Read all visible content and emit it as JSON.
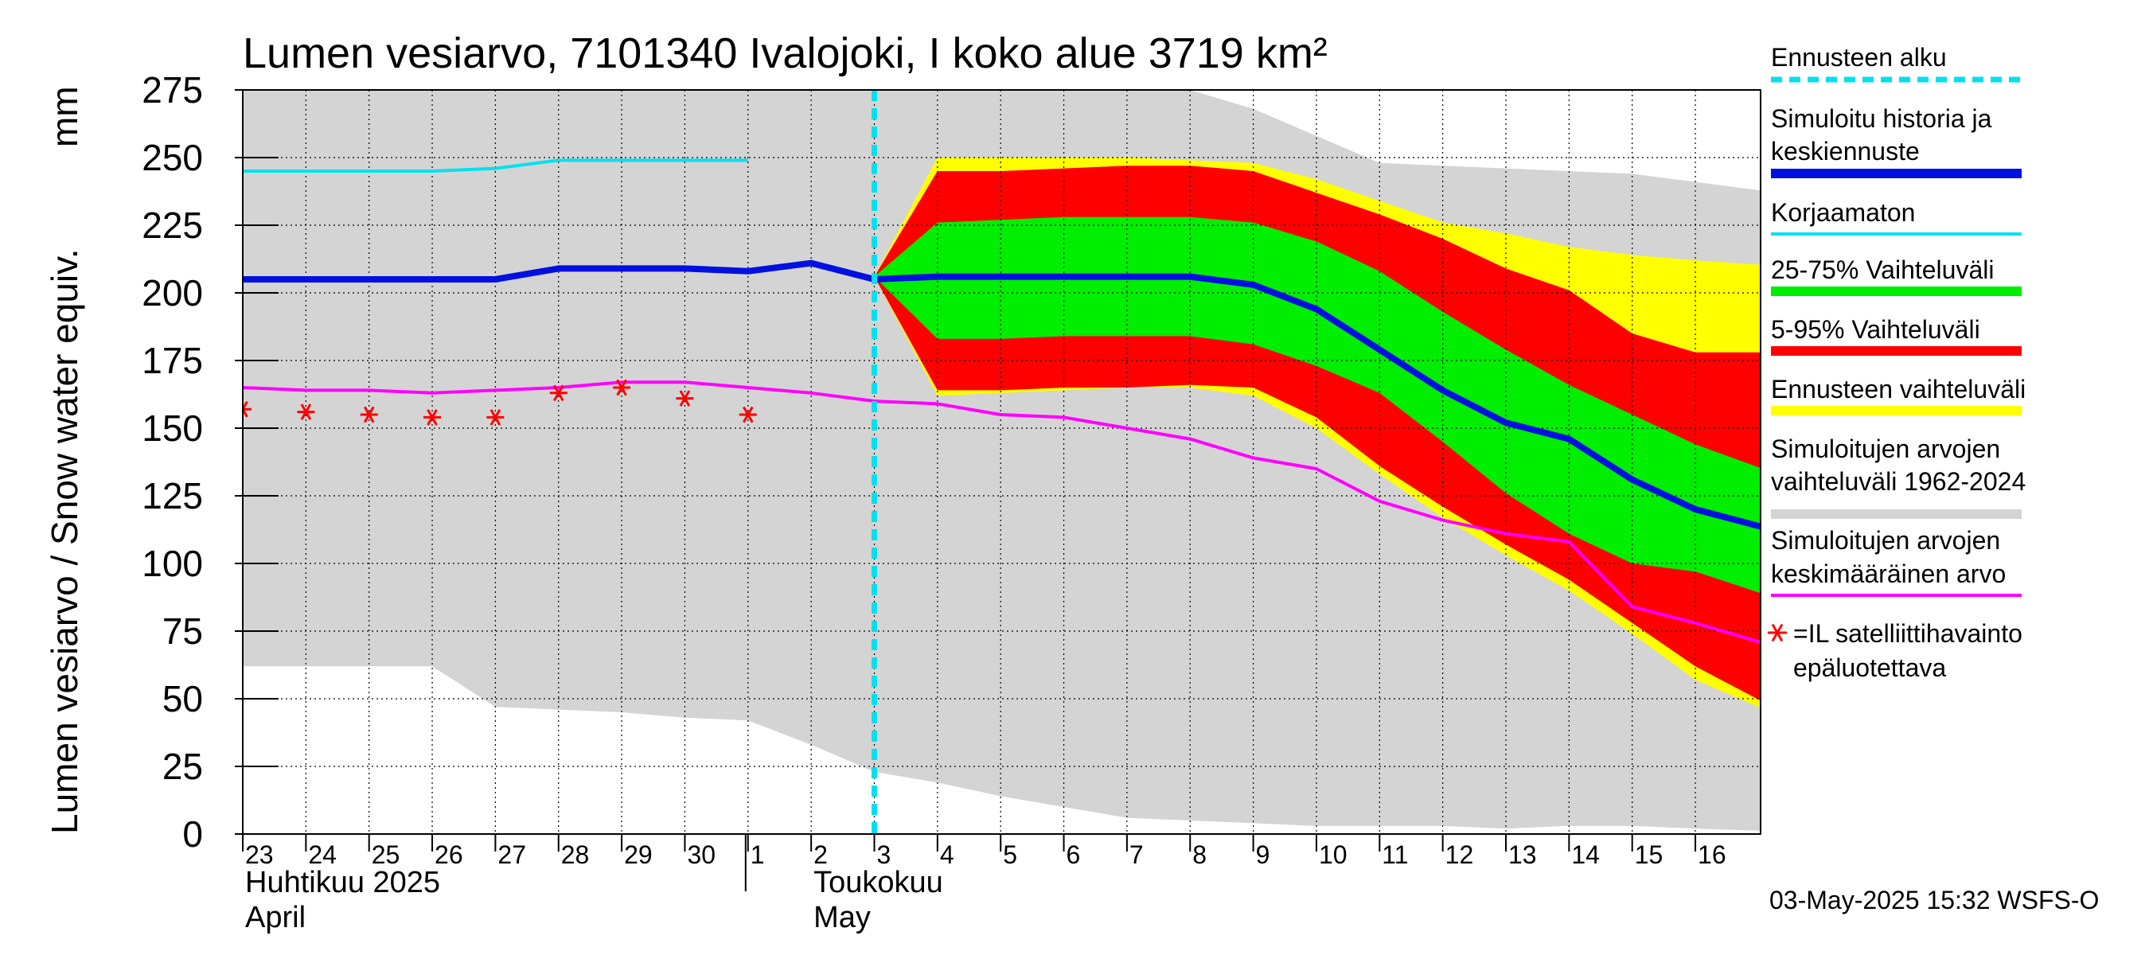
{
  "chart_data": {
    "type": "area",
    "title": "Lumen vesiarvo, 7101340 Ivalojoki, I koko alue 3719 km²",
    "ylabel": "Lumen vesiarvo / Snow water equiv.",
    "yunit": "mm",
    "ylim": [
      0,
      275
    ],
    "yticks": [
      0,
      25,
      50,
      75,
      100,
      125,
      150,
      175,
      200,
      225,
      250,
      275
    ],
    "xlim": [
      0,
      24.3
    ],
    "x_labels": [
      {
        "x": 0,
        "label": "23"
      },
      {
        "x": 1,
        "label": "24"
      },
      {
        "x": 2,
        "label": "25"
      },
      {
        "x": 3,
        "label": "26"
      },
      {
        "x": 4,
        "label": "27"
      },
      {
        "x": 5,
        "label": "28"
      },
      {
        "x": 6,
        "label": "29"
      },
      {
        "x": 7,
        "label": "30"
      },
      {
        "x": 8,
        "label": "1"
      },
      {
        "x": 9,
        "label": "2"
      },
      {
        "x": 10,
        "label": "3"
      },
      {
        "x": 11,
        "label": "4"
      },
      {
        "x": 12,
        "label": "5"
      },
      {
        "x": 13,
        "label": "6"
      },
      {
        "x": 14,
        "label": "7"
      },
      {
        "x": 15,
        "label": "8"
      },
      {
        "x": 16,
        "label": "9"
      },
      {
        "x": 17,
        "label": "10"
      },
      {
        "x": 18,
        "label": "11"
      },
      {
        "x": 19,
        "label": "12"
      },
      {
        "x": 20,
        "label": "13"
      },
      {
        "x": 21,
        "label": "14"
      },
      {
        "x": 22,
        "label": "15"
      },
      {
        "x": 23,
        "label": "16"
      }
    ],
    "month_labels": [
      {
        "x": 0,
        "line1": "Huhtikuu  2025",
        "line2": "April"
      },
      {
        "x": 9,
        "line1": "Toukokuu",
        "line2": "May"
      }
    ],
    "month_divider_x": 8,
    "forecast_start_x": 10,
    "grid": true,
    "legend_position": "right",
    "series": [
      {
        "name": "Simuloitujen arvojen vaihteluväli 1962-2024",
        "kind": "band",
        "color": "#d4d4d4",
        "x": [
          0,
          2,
          3,
          4,
          6,
          7,
          8,
          9,
          10,
          11,
          12,
          13,
          14,
          15,
          16,
          17,
          18,
          19,
          20,
          21,
          22,
          23,
          24.3
        ],
        "upper": [
          275,
          275,
          275,
          275,
          275,
          275,
          275,
          275,
          275,
          275,
          275,
          275,
          275,
          275,
          268,
          258,
          248,
          247,
          246,
          245,
          244,
          241,
          237
        ],
        "lower": [
          62,
          62,
          62,
          47,
          45,
          43,
          42,
          33,
          23,
          19,
          14,
          10,
          6,
          5,
          4,
          3,
          3,
          3,
          2,
          3,
          3,
          2,
          1
        ]
      },
      {
        "name": "Ennusteen vaihteluväli",
        "kind": "band",
        "color": "#ffff00",
        "x": [
          10,
          11,
          12,
          13,
          14,
          15,
          16,
          17,
          18,
          19,
          20,
          21,
          22,
          23,
          24.3
        ],
        "upper": [
          206,
          250,
          250,
          250,
          250,
          249,
          248,
          242,
          234,
          226,
          222,
          217,
          214,
          212,
          210
        ],
        "lower": [
          206,
          162,
          163,
          164,
          165,
          165,
          162,
          150,
          133,
          117,
          103,
          90,
          74,
          57,
          44
        ]
      },
      {
        "name": "5-95% Vaihteluväli",
        "kind": "band",
        "color": "#ff0000",
        "x": [
          10,
          11,
          12,
          13,
          14,
          15,
          16,
          17,
          18,
          19,
          20,
          21,
          22,
          23,
          24.3
        ],
        "upper": [
          206,
          245,
          245,
          246,
          247,
          247,
          245,
          237,
          229,
          220,
          209,
          201,
          185,
          178,
          178
        ],
        "lower": [
          206,
          164,
          164,
          165,
          165,
          166,
          165,
          154,
          136,
          121,
          107,
          94,
          78,
          62,
          46
        ]
      },
      {
        "name": "25-75% Vaihteluväli",
        "kind": "band",
        "color": "#00ee00",
        "x": [
          10,
          11,
          12,
          13,
          14,
          15,
          16,
          17,
          18,
          19,
          20,
          21,
          22,
          23,
          24.3
        ],
        "upper": [
          206,
          226,
          227,
          228,
          228,
          228,
          226,
          219,
          208,
          193,
          179,
          166,
          155,
          144,
          133
        ],
        "lower": [
          206,
          183,
          183,
          184,
          184,
          184,
          181,
          173,
          163,
          145,
          126,
          111,
          100,
          97,
          87
        ]
      },
      {
        "name": "Korjaamaton",
        "kind": "line",
        "color": "#00e0f0",
        "x": [
          0,
          1,
          2,
          3,
          4,
          5,
          6,
          7,
          8
        ],
        "y": [
          245,
          245,
          245,
          245,
          246,
          249,
          249,
          249,
          249
        ]
      },
      {
        "name": "Simuloitu historia ja keskiennuste",
        "kind": "line",
        "color": "#0010e0",
        "x": [
          0,
          1,
          2,
          3,
          4,
          5,
          6,
          7,
          8,
          9,
          10,
          11,
          12,
          13,
          14,
          15,
          16,
          17,
          18,
          19,
          20,
          21,
          22,
          23,
          24.3
        ],
        "y": [
          205,
          205,
          205,
          205,
          205,
          209,
          209,
          209,
          208,
          211,
          205,
          206,
          206,
          206,
          206,
          206,
          203,
          194,
          179,
          164,
          152,
          146,
          131,
          120,
          112
        ]
      },
      {
        "name": "Simuloitujen arvojen keskimääräinen arvo",
        "kind": "line",
        "color": "#ff00ff",
        "x": [
          0,
          1,
          2,
          3,
          4,
          5,
          6,
          7,
          8,
          9,
          10,
          11,
          12,
          13,
          14,
          15,
          16,
          17,
          18,
          19,
          20,
          21,
          22,
          23,
          24.3
        ],
        "y": [
          165,
          164,
          164,
          163,
          164,
          165,
          167,
          167,
          165,
          163,
          160,
          159,
          155,
          154,
          150,
          146,
          139,
          135,
          123,
          116,
          111,
          108,
          84,
          78,
          69
        ]
      },
      {
        "name": "=IL satelliittihavainto epäluotettava",
        "kind": "markers",
        "color": "#ff0000",
        "x": [
          0,
          1,
          2,
          3,
          4,
          5,
          6,
          7,
          8
        ],
        "y": [
          157,
          156,
          155,
          154,
          154,
          163,
          165,
          161,
          155
        ]
      }
    ],
    "legend": [
      {
        "label": "Ennusteen alku",
        "color": "#00e0f0",
        "style": "dashed"
      },
      {
        "label": "Simuloitu historia ja keskiennuste",
        "color": "#0010e0",
        "style": "thick"
      },
      {
        "label": "Korjaamaton",
        "color": "#00e0f0",
        "style": "line"
      },
      {
        "label": "25-75% Vaihteluväli",
        "color": "#00ee00",
        "style": "thick"
      },
      {
        "label": "5-95% Vaihteluväli",
        "color": "#ff0000",
        "style": "thick"
      },
      {
        "label": "Ennusteen vaihteluväli",
        "color": "#ffff00",
        "style": "thick"
      },
      {
        "label": "Simuloitujen arvojen vaihteluväli 1962-2024",
        "color": "#d4d4d4",
        "style": "thick"
      },
      {
        "label": "Simuloitujen arvojen keskimääräinen arvo",
        "color": "#ff00ff",
        "style": "line"
      },
      {
        "label": "=IL satelliittihavainto epäluotettava",
        "color": "#ff0000",
        "style": "marker"
      }
    ]
  },
  "footer": {
    "timestamp": "03-May-2025 15:32 WSFS-O"
  }
}
